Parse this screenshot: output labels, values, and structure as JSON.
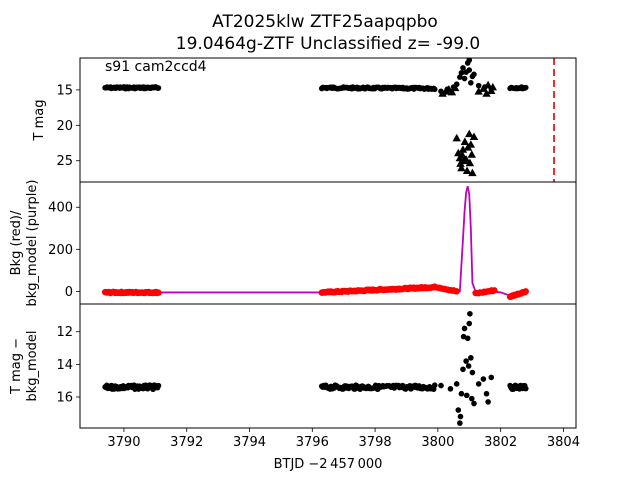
{
  "title": {
    "line1": "AT2025klw  ZTF25aapqpbo",
    "line2": "19.0464g-ZTF Unclassified z= -99.0"
  },
  "colors": {
    "black": "#000000",
    "red": "#ff0000",
    "purple": "#bf00bf",
    "marker_line": "#dd0000"
  },
  "chart_data": [
    {
      "type": "scatter",
      "panel": "top",
      "annotation": "s91 cam2ccd4",
      "ylabel": "T mag",
      "ylim": [
        28.0,
        10.5
      ],
      "y_inverted": true,
      "yticks": [
        15,
        20,
        25
      ],
      "xlim": [
        3788.6,
        3804.4
      ],
      "vline_x": 3803.7,
      "series": [
        {
          "marker": "circle",
          "color": "#000000",
          "segments": [
            {
              "x": [
                3789.4,
                3791.1
              ],
              "y": [
                14.7,
                14.7
              ],
              "n": 60
            },
            {
              "x": [
                3796.3,
                3799.9
              ],
              "y": [
                14.7,
                14.8
              ],
              "n": 110
            },
            {
              "x": [
                3802.3,
                3802.8
              ],
              "y": [
                14.7,
                14.7
              ],
              "n": 16
            }
          ],
          "points": [
            {
              "x": 3800.1,
              "y": 15.2
            },
            {
              "x": 3800.3,
              "y": 14.9
            },
            {
              "x": 3800.5,
              "y": 14.6
            },
            {
              "x": 3800.6,
              "y": 14.2
            },
            {
              "x": 3800.7,
              "y": 13.2
            },
            {
              "x": 3800.75,
              "y": 12.6
            },
            {
              "x": 3800.8,
              "y": 11.9
            },
            {
              "x": 3800.85,
              "y": 13.4
            },
            {
              "x": 3800.9,
              "y": 12.5
            },
            {
              "x": 3800.95,
              "y": 11.2
            },
            {
              "x": 3801.0,
              "y": 12.2
            },
            {
              "x": 3801.05,
              "y": 14.0
            },
            {
              "x": 3801.1,
              "y": 13.1
            },
            {
              "x": 3801.15,
              "y": 12.8
            },
            {
              "x": 3801.0,
              "y": 10.8
            },
            {
              "x": 3801.3,
              "y": 14.4
            },
            {
              "x": 3801.5,
              "y": 14.6
            },
            {
              "x": 3801.7,
              "y": 14.8
            }
          ]
        },
        {
          "marker": "triangle",
          "color": "#000000",
          "points": [
            {
              "x": 3800.15,
              "y": 15.5
            },
            {
              "x": 3800.25,
              "y": 15.2
            },
            {
              "x": 3800.35,
              "y": 14.9
            },
            {
              "x": 3800.45,
              "y": 15.3
            },
            {
              "x": 3800.55,
              "y": 14.7
            },
            {
              "x": 3800.6,
              "y": 21.8
            },
            {
              "x": 3800.65,
              "y": 23.9
            },
            {
              "x": 3800.7,
              "y": 24.6
            },
            {
              "x": 3800.72,
              "y": 25.4
            },
            {
              "x": 3800.75,
              "y": 26.0
            },
            {
              "x": 3800.78,
              "y": 24.2
            },
            {
              "x": 3800.8,
              "y": 23.4
            },
            {
              "x": 3800.83,
              "y": 25.0
            },
            {
              "x": 3800.86,
              "y": 22.3
            },
            {
              "x": 3800.9,
              "y": 24.8
            },
            {
              "x": 3800.93,
              "y": 26.4
            },
            {
              "x": 3800.96,
              "y": 23.1
            },
            {
              "x": 3801.0,
              "y": 21.2
            },
            {
              "x": 3801.02,
              "y": 25.3
            },
            {
              "x": 3801.05,
              "y": 22.7
            },
            {
              "x": 3801.08,
              "y": 24.1
            },
            {
              "x": 3801.1,
              "y": 26.7
            },
            {
              "x": 3801.15,
              "y": 21.6
            },
            {
              "x": 3801.3,
              "y": 15.2
            },
            {
              "x": 3801.45,
              "y": 14.8
            },
            {
              "x": 3801.55,
              "y": 15.5
            },
            {
              "x": 3801.6,
              "y": 14.3
            },
            {
              "x": 3801.7,
              "y": 15.1
            },
            {
              "x": 3801.75,
              "y": 14.6
            }
          ]
        }
      ]
    },
    {
      "type": "line",
      "panel": "middle",
      "ylabel": "Bkg (red)/\nbkg_model (purple)",
      "ylim": [
        -60,
        520
      ],
      "yticks": [
        0,
        200,
        400
      ],
      "xlim": [
        3788.6,
        3804.4
      ],
      "series": [
        {
          "name": "bkg_model",
          "color": "#bf00bf",
          "style": "line",
          "x": [
            3789.4,
            3796.3,
            3799.5,
            3800.0,
            3800.5,
            3800.7,
            3800.8,
            3800.85,
            3800.9,
            3800.95,
            3801.0,
            3801.05,
            3801.1,
            3801.2,
            3801.5,
            3802.0,
            3802.3,
            3802.8
          ],
          "y": [
            -5,
            -5,
            5,
            10,
            5,
            0,
            250,
            380,
            470,
            500,
            460,
            300,
            40,
            0,
            5,
            -5,
            -20,
            0
          ]
        },
        {
          "name": "bkg",
          "color": "#ff0000",
          "style": "points",
          "segments": [
            {
              "x": [
                3789.4,
                3791.1
              ],
              "y": [
                -5,
                -5
              ],
              "n": 60
            },
            {
              "x": [
                3796.3,
                3799.9
              ],
              "y": [
                -5,
                20
              ],
              "n": 120
            },
            {
              "x": [
                3800.0,
                3800.6
              ],
              "y": [
                20,
                0
              ],
              "n": 14
            },
            {
              "x": [
                3801.2,
                3801.8
              ],
              "y": [
                -10,
                5
              ],
              "n": 14
            },
            {
              "x": [
                3802.3,
                3802.8
              ],
              "y": [
                -25,
                0
              ],
              "n": 18
            }
          ]
        }
      ]
    },
    {
      "type": "scatter",
      "panel": "bottom",
      "ylabel": "T mag −\nbkg_model",
      "ylim": [
        17.9,
        10.3
      ],
      "y_inverted": true,
      "yticks": [
        12,
        14,
        16
      ],
      "xlim": [
        3788.6,
        3804.4
      ],
      "xticks": [
        3790,
        3792,
        3794,
        3796,
        3798,
        3800,
        3802,
        3804
      ],
      "xlabel": "BTJD −2 457 000",
      "series": [
        {
          "marker": "circle",
          "color": "#000000",
          "segments": [
            {
              "x": [
                3789.4,
                3791.1
              ],
              "y": [
                15.4,
                15.4
              ],
              "n": 60
            },
            {
              "x": [
                3796.3,
                3799.9
              ],
              "y": [
                15.4,
                15.4
              ],
              "n": 110
            },
            {
              "x": [
                3802.3,
                3802.8
              ],
              "y": [
                15.4,
                15.4
              ],
              "n": 16
            }
          ],
          "points": [
            {
              "x": 3800.1,
              "y": 15.3
            },
            {
              "x": 3800.4,
              "y": 15.5
            },
            {
              "x": 3800.6,
              "y": 15.2
            },
            {
              "x": 3800.65,
              "y": 16.8
            },
            {
              "x": 3800.7,
              "y": 17.6
            },
            {
              "x": 3800.72,
              "y": 17.2
            },
            {
              "x": 3800.75,
              "y": 15.8
            },
            {
              "x": 3800.8,
              "y": 14.3
            },
            {
              "x": 3800.82,
              "y": 12.3
            },
            {
              "x": 3800.85,
              "y": 11.8
            },
            {
              "x": 3800.9,
              "y": 13.8
            },
            {
              "x": 3800.92,
              "y": 15.9
            },
            {
              "x": 3800.95,
              "y": 12.4
            },
            {
              "x": 3800.98,
              "y": 14.1
            },
            {
              "x": 3801.0,
              "y": 11.5
            },
            {
              "x": 3801.02,
              "y": 10.9
            },
            {
              "x": 3801.05,
              "y": 13.6
            },
            {
              "x": 3801.08,
              "y": 16.1
            },
            {
              "x": 3801.1,
              "y": 14.5
            },
            {
              "x": 3801.15,
              "y": 16.4
            },
            {
              "x": 3801.3,
              "y": 15.2
            },
            {
              "x": 3801.45,
              "y": 14.9
            },
            {
              "x": 3801.55,
              "y": 15.8
            },
            {
              "x": 3801.6,
              "y": 16.3
            },
            {
              "x": 3801.7,
              "y": 14.8
            }
          ]
        }
      ]
    }
  ]
}
